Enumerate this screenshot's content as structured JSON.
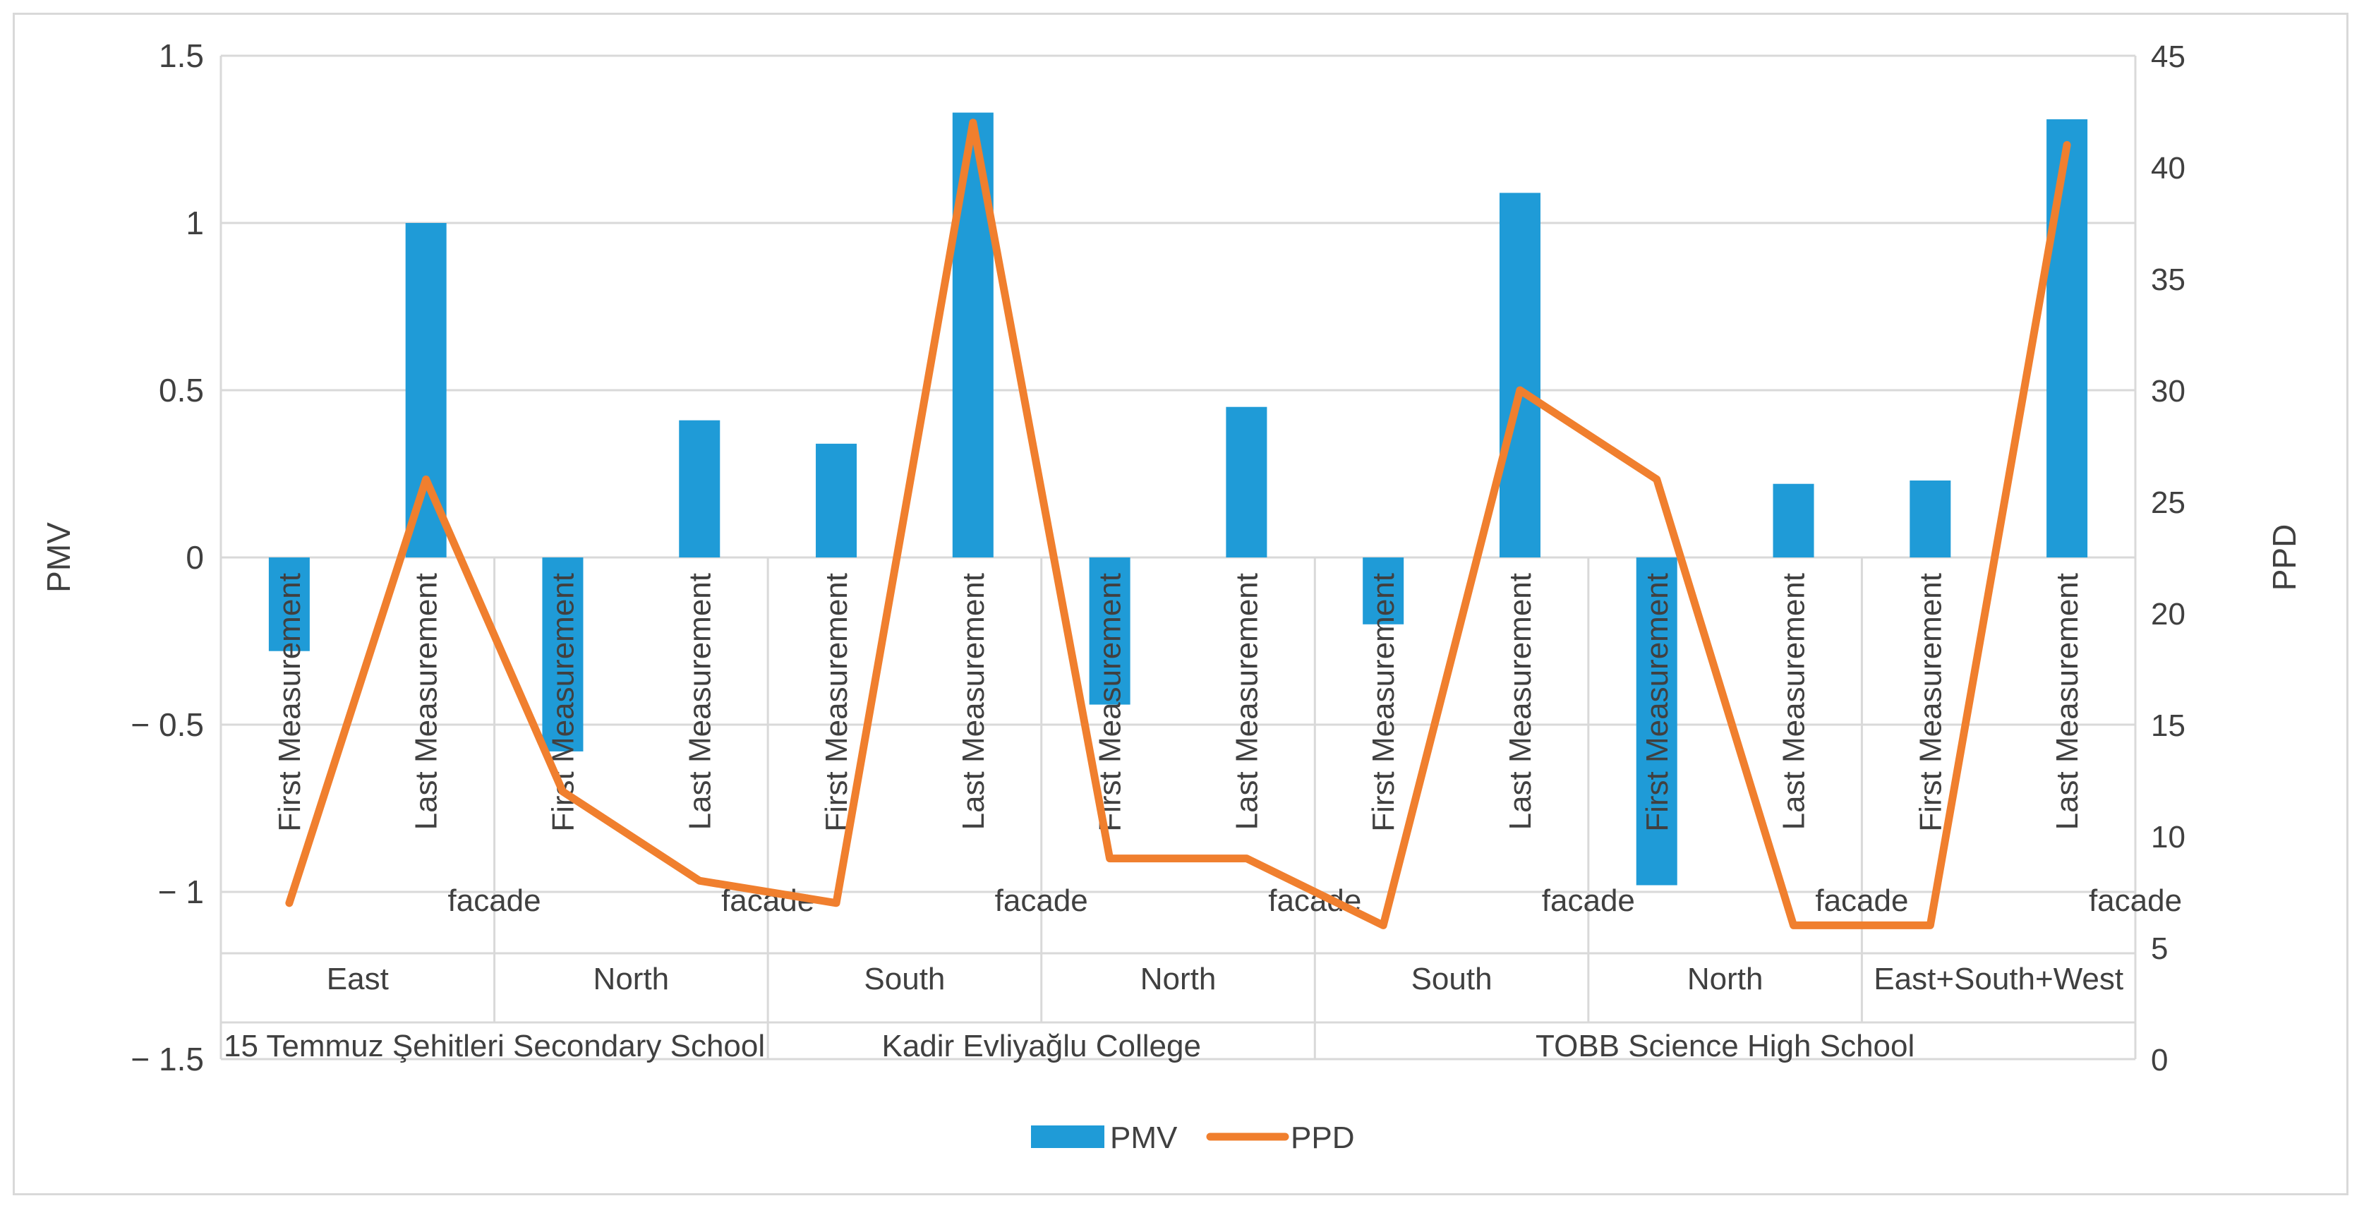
{
  "chart_data": {
    "type": "bar+line",
    "title": "",
    "left_axis": {
      "label": "PMV",
      "min": -1.5,
      "max": 1.5,
      "ticks": [
        "1.5",
        "1",
        "0.5",
        "0",
        "− 0.5",
        "− 1",
        "− 1.5"
      ],
      "tick_values": [
        1.5,
        1,
        0.5,
        0,
        -0.5,
        -1,
        -1.5
      ]
    },
    "right_axis": {
      "label": "PPD",
      "min": 0,
      "max": 45,
      "ticks": [
        "45",
        "40",
        "35",
        "30",
        "25",
        "20",
        "15",
        "10",
        "5",
        "0"
      ],
      "tick_values": [
        45,
        40,
        35,
        30,
        25,
        20,
        15,
        10,
        5,
        0
      ]
    },
    "categories": [
      "First Measurement",
      "Last Measurement",
      "First Measurement",
      "Last Measurement",
      "First Measurement",
      "Last Measurement",
      "First Measurement",
      "Last Measurement",
      "First Measurement",
      "Last Measurement",
      "First Measurement",
      "Last Measurement",
      "First Measurement",
      "Last Measurement"
    ],
    "facade_label": "facade",
    "facades": [
      "East",
      "North",
      "South",
      "North",
      "South",
      "North",
      "East+South+West"
    ],
    "schools": [
      {
        "name": "15 Temmuz Şehitleri Secondary School",
        "span": 4
      },
      {
        "name": "Kadir Evliyağlu College",
        "span": 4
      },
      {
        "name": "TOBB Science High School",
        "span": 6
      }
    ],
    "series": [
      {
        "name": "PMV",
        "type": "bar",
        "axis": "left",
        "color": "#1f9bd7",
        "values": [
          -0.28,
          1.0,
          -0.58,
          0.41,
          0.34,
          1.33,
          -0.44,
          0.45,
          -0.2,
          1.09,
          -0.98,
          0.22,
          0.23,
          1.31
        ]
      },
      {
        "name": "PPD",
        "type": "line",
        "axis": "right",
        "color": "#f07f2e",
        "values": [
          7,
          26,
          12,
          8,
          7,
          42,
          9,
          9,
          6,
          30,
          26,
          6,
          6,
          41
        ]
      }
    ],
    "legend": {
      "position": "bottom",
      "items": [
        "PMV",
        "PPD"
      ]
    },
    "grid": true
  }
}
